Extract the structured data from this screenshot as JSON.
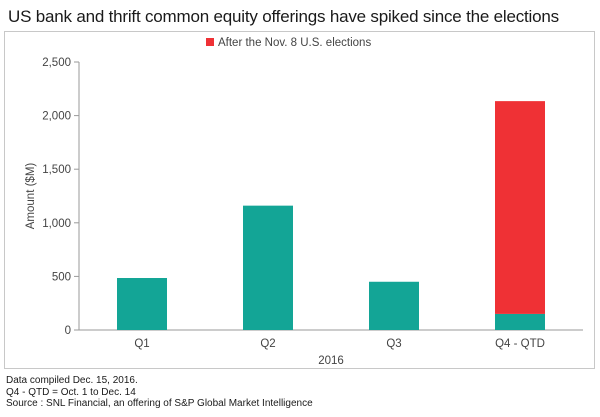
{
  "title": "US bank and thrift common equity offerings have spiked since the elections",
  "footer": {
    "line1": "Data compiled Dec. 15, 2016.",
    "line2": "Q4 - QTD = Oct. 1 to Dec. 14",
    "line3": "Source : SNL Financial, an offering of S&P Global Market Intelligence"
  },
  "colors": {
    "base_series": "#13a596",
    "post_election_series": "#ef3135",
    "axis": "#9a9a9a"
  },
  "chart_data": {
    "type": "bar",
    "stacked": true,
    "categories": [
      "Q1",
      "Q2",
      "Q3",
      "Q4 - QTD"
    ],
    "series": [
      {
        "values": [
          485,
          1160,
          450,
          150
        ]
      },
      {
        "name": "After the Nov. 8 U.S. elections",
        "values": [
          0,
          0,
          0,
          1985
        ]
      }
    ],
    "xlabel": "2016",
    "ylabel": "Amount ($M)",
    "ylim": [
      0,
      2500
    ],
    "yticks": [
      0,
      500,
      1000,
      1500,
      2000,
      2500
    ],
    "ytick_labels": [
      "0",
      "500",
      "1,000",
      "1,500",
      "2,000",
      "2,500"
    ],
    "grid": false,
    "legend_position": "top-center"
  }
}
